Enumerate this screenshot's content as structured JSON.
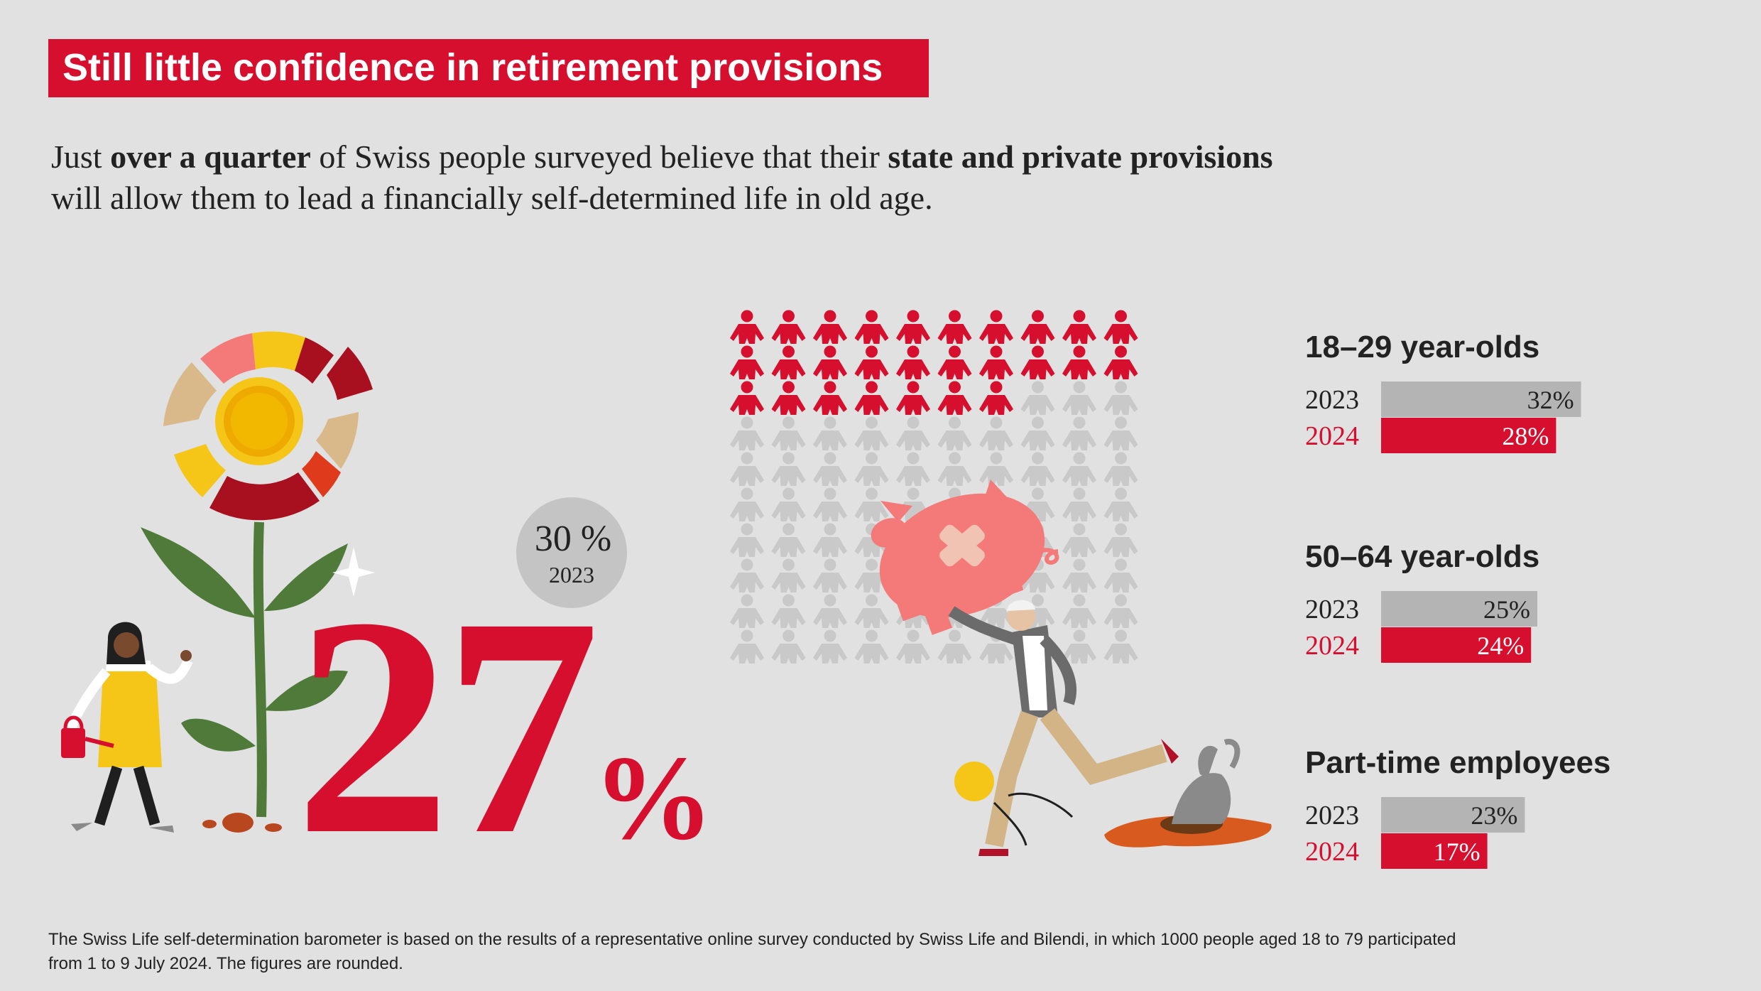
{
  "title": "Still little confidence in retirement provisions",
  "intro": {
    "p1": "Just ",
    "b1": "over a quarter",
    "p2": " of Swiss people surveyed believe that their ",
    "b2": "state and private provisions",
    "p3": "will allow them to lead a financially self-determined life in old age."
  },
  "headline": {
    "number": "27",
    "percent_sign": "%",
    "previous_value": "30 %",
    "previous_year": "2023"
  },
  "pictogram": {
    "total": 100,
    "highlighted": 27
  },
  "chart_data": {
    "type": "bar",
    "orientation": "horizontal",
    "unit": "%",
    "groups": [
      {
        "title": "18–29 year-olds",
        "rows": [
          {
            "year": "2023",
            "value": 32,
            "label": "32%"
          },
          {
            "year": "2024",
            "value": 28,
            "label": "28%"
          }
        ]
      },
      {
        "title": "50–64 year-olds",
        "rows": [
          {
            "year": "2023",
            "value": 25,
            "label": "25%"
          },
          {
            "year": "2024",
            "value": 24,
            "label": "24%"
          }
        ]
      },
      {
        "title": "Part-time employees",
        "rows": [
          {
            "year": "2023",
            "value": 23,
            "label": "23%"
          },
          {
            "year": "2024",
            "value": 17,
            "label": "17%"
          }
        ]
      }
    ]
  },
  "footnote": {
    "line1": "The Swiss Life self-determination barometer is based on the results of a representative online survey conducted by Swiss Life and Bilendi, in which 1000 people aged 18 to 79 participated",
    "line2": "from 1 to 9 July 2024. The figures are rounded."
  },
  "colors": {
    "brand_red": "#d50f2d",
    "bar_2023": "#b4b4b4",
    "bar_2024": "#d50f2d",
    "background": "#e1e1e1",
    "person_inactive": "#c9c9c9"
  },
  "icons": [
    "flower-illustration",
    "gardener-illustration",
    "piggy-bank-icon",
    "running-man-illustration",
    "dog-illustration",
    "coin-icon",
    "person-icon"
  ]
}
